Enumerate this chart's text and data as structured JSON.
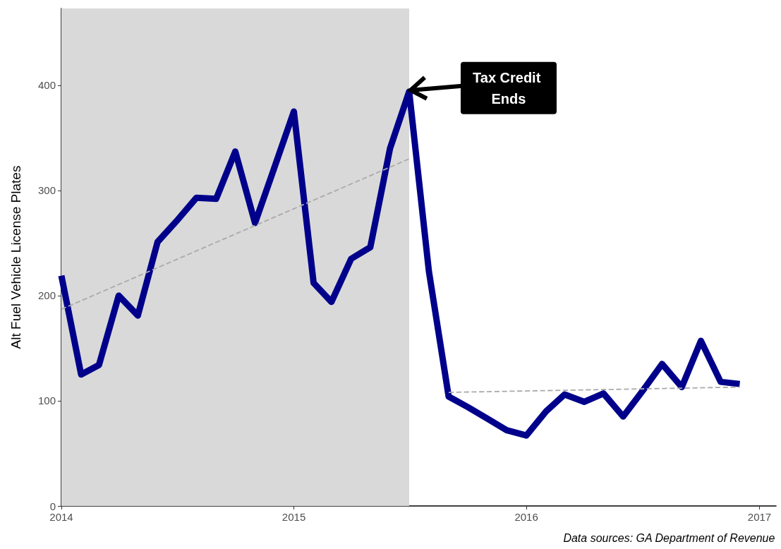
{
  "chart_data": {
    "type": "line",
    "ylabel": "Alt Fuel Vehicle License Plates",
    "x": [
      "2014-01",
      "2014-02",
      "2014-03",
      "2014-04",
      "2014-05",
      "2014-06",
      "2014-07",
      "2014-08",
      "2014-09",
      "2014-10",
      "2014-11",
      "2014-12",
      "2015-01",
      "2015-02",
      "2015-03",
      "2015-04",
      "2015-05",
      "2015-06",
      "2015-07",
      "2015-08",
      "2015-09",
      "2015-10",
      "2015-11",
      "2015-12",
      "2016-01",
      "2016-02",
      "2016-03",
      "2016-04",
      "2016-05",
      "2016-06",
      "2016-07",
      "2016-08",
      "2016-09",
      "2016-10",
      "2016-11",
      "2016-12"
    ],
    "series": [
      {
        "color": "#00008b",
        "line_style": "solid",
        "values": [
          219,
          125,
          134,
          200,
          181,
          251,
          271,
          293,
          292,
          337,
          269,
          321,
          375,
          212,
          194,
          235,
          246,
          340,
          394,
          223,
          104,
          94,
          83,
          72,
          67,
          90,
          106,
          99,
          107,
          85,
          109,
          135,
          113,
          157,
          118,
          116
        ]
      },
      {
        "color": "#aaaaaa",
        "line_style": "dashed",
        "x": [
          "2014-01",
          "2015-07"
        ],
        "values": [
          187,
          330
        ]
      },
      {
        "color": "#aaaaaa",
        "line_style": "dashed",
        "x": [
          "2015-09",
          "2016-12"
        ],
        "values": [
          108,
          113
        ]
      }
    ],
    "xlim": [
      "2014-01-01",
      "2017-01-27"
    ],
    "xticks": [
      {
        "value": "2014-01-01",
        "label": "2014"
      },
      {
        "value": "2015-01-01",
        "label": "2015"
      },
      {
        "value": "2016-01-01",
        "label": "2016"
      },
      {
        "value": "2017-01-01",
        "label": "2017"
      }
    ],
    "ylim": [
      0,
      473
    ],
    "yticks": [
      0,
      100,
      200,
      300,
      400
    ],
    "bands": [
      {
        "axis": "x",
        "from": "2014-01",
        "to": "2015-07",
        "color": "#d9d9d9"
      }
    ],
    "annotations": [
      {
        "text": "Tax Credit Ends",
        "x": "2015-07",
        "y": 394
      },
      "Data sources: GA Department of Revenue"
    ],
    "grid": false,
    "marker": "none"
  }
}
